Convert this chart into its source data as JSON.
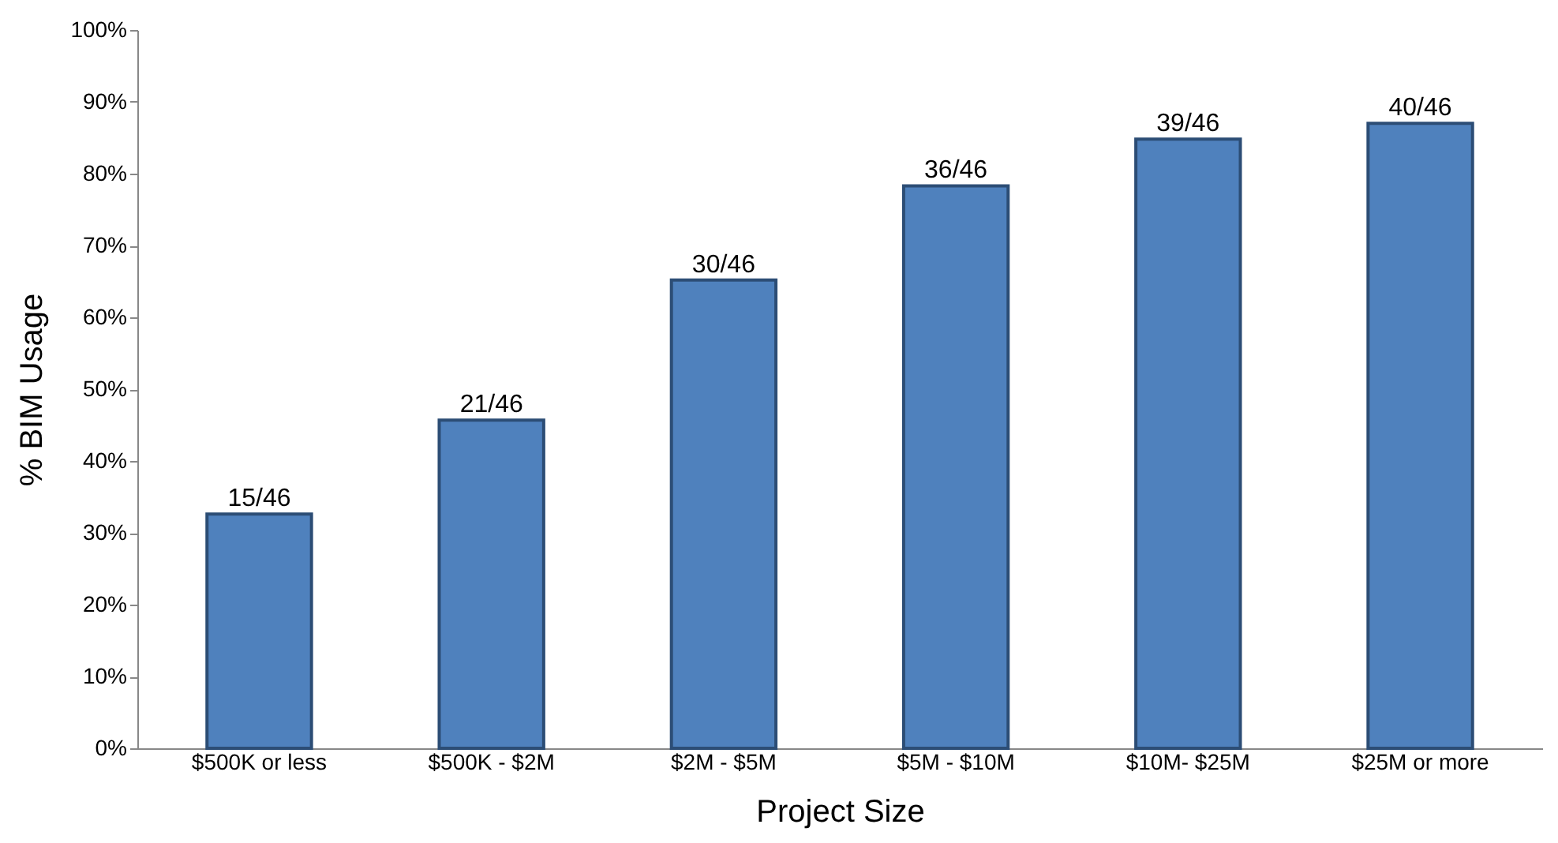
{
  "chart_data": {
    "type": "bar",
    "xlabel": "Project Size",
    "ylabel": "% BIM Usage",
    "categories": [
      "$500K or less",
      "$500K - $2M",
      "$2M - $5M",
      "$5M - $10M",
      "$10M- $25M",
      "$25M or more"
    ],
    "values": [
      32.6,
      45.7,
      65.2,
      78.3,
      84.8,
      87.0
    ],
    "value_labels": [
      "15/46",
      "21/46",
      "30/46",
      "36/46",
      "39/46",
      "40/46"
    ],
    "color": "#4f81bd",
    "ylim": [
      0,
      100
    ],
    "yticks": [
      {
        "value": 0,
        "label": "0%"
      },
      {
        "value": 10,
        "label": "10%"
      },
      {
        "value": 20,
        "label": "20%"
      },
      {
        "value": 30,
        "label": "30%"
      },
      {
        "value": 40,
        "label": "40%"
      },
      {
        "value": 50,
        "label": "50%"
      },
      {
        "value": 60,
        "label": "60%"
      },
      {
        "value": 70,
        "label": "70%"
      },
      {
        "value": 80,
        "label": "80%"
      },
      {
        "value": 90,
        "label": "90%"
      },
      {
        "value": 100,
        "label": "100%"
      }
    ],
    "grid": false
  }
}
